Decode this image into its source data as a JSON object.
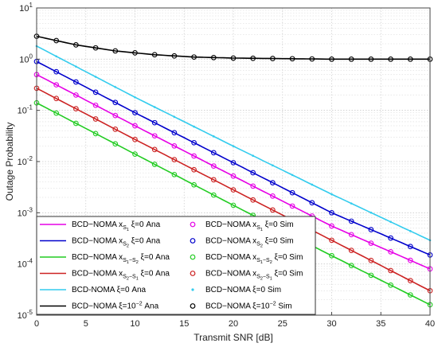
{
  "chart_data": {
    "type": "line",
    "xlabel": "Transmit SNR [dB]",
    "ylabel": "Outage Probability",
    "xlim": [
      0,
      40
    ],
    "ylim": [
      1e-05,
      10
    ],
    "yscale": "log",
    "grid": true,
    "legend_position": "bottom-left",
    "x_ticks": [
      "0",
      "5",
      "10",
      "15",
      "20",
      "25",
      "30",
      "35",
      "40"
    ],
    "y_ticks": [
      {
        "exp": "-5",
        "value": 1e-05
      },
      {
        "exp": "-4",
        "value": 0.0001
      },
      {
        "exp": "-3",
        "value": 0.001
      },
      {
        "exp": "-2",
        "value": 0.01
      },
      {
        "exp": "-1",
        "value": 0.1
      },
      {
        "exp": "0",
        "value": 1
      },
      {
        "exp": "1",
        "value": 10
      }
    ],
    "x": [
      0,
      2,
      4,
      6,
      8,
      10,
      12,
      14,
      16,
      18,
      20,
      22,
      24,
      26,
      28,
      30,
      32,
      34,
      36,
      38,
      40
    ],
    "series": [
      {
        "key": "xs1",
        "color": "#e600e6",
        "points": [
          [
            0,
            0.5
          ],
          [
            10,
            0.05
          ],
          [
            20,
            0.0052
          ],
          [
            30,
            0.00055
          ],
          [
            40,
            8e-05
          ]
        ]
      },
      {
        "key": "xs2",
        "color": "#0000cc",
        "points": [
          [
            0,
            0.9
          ],
          [
            10,
            0.09
          ],
          [
            20,
            0.0095
          ],
          [
            30,
            0.001
          ],
          [
            40,
            0.00015
          ]
        ]
      },
      {
        "key": "xs1s2",
        "color": "#22cc22",
        "points": [
          [
            0,
            0.14
          ],
          [
            10,
            0.014
          ],
          [
            20,
            0.0014
          ],
          [
            30,
            0.000145
          ],
          [
            40,
            1.6e-05
          ]
        ]
      },
      {
        "key": "xs2s1",
        "color": "#cc2222",
        "points": [
          [
            0,
            0.27
          ],
          [
            10,
            0.027
          ],
          [
            20,
            0.0028
          ],
          [
            30,
            0.00029
          ],
          [
            40,
            3e-05
          ]
        ]
      },
      {
        "key": "bcd0",
        "color": "#33ccee",
        "points": [
          [
            0,
            1.8
          ],
          [
            10,
            0.18
          ],
          [
            20,
            0.02
          ],
          [
            30,
            0.0023
          ],
          [
            40,
            0.00029
          ]
        ]
      },
      {
        "key": "bcd1e2",
        "color": "#000000",
        "points": [
          [
            0,
            2.8
          ],
          [
            4,
            1.9
          ],
          [
            8,
            1.45
          ],
          [
            12,
            1.22
          ],
          [
            16,
            1.1
          ],
          [
            20,
            1.05
          ],
          [
            30,
            1.0
          ],
          [
            40,
            1.0
          ]
        ]
      }
    ],
    "legend": {
      "left": [
        {
          "key": "xs1",
          "base": "BCD−NOMA x",
          "sub": "S",
          "subsub": "1",
          "tail": " ξ=0 Ana"
        },
        {
          "key": "xs2",
          "base": "BCD−NOMA x",
          "sub": "S",
          "subsub": "2",
          "tail": " ξ=0 Ana"
        },
        {
          "key": "xs1s2",
          "base": "BCD−NOMA x",
          "sub": "S",
          "subsub": "1",
          "mid": "−S",
          "midsub": "2",
          "tail": " ξ=0 Ana"
        },
        {
          "key": "xs2s1",
          "base": "BCD−NOMA x",
          "sub": "S",
          "subsub": "2",
          "mid": "−S",
          "midsub": "1",
          "tail": " ξ=0 Ana"
        },
        {
          "key": "bcd0",
          "base": "BCD-NOMA ξ=0 Ana"
        },
        {
          "key": "bcd1e2",
          "base": "BCD−NOMA ξ=10",
          "sup": "−2",
          "tail": " Ana"
        }
      ],
      "right": [
        {
          "key": "xs1",
          "base": "BCD−NOMA x",
          "sub": "S",
          "subsub": "1",
          "tail": " ξ=0 Sim"
        },
        {
          "key": "xs2",
          "base": "BCD−NOMA x",
          "sub": "S",
          "subsub": "2",
          "tail": " ξ=0 Sim"
        },
        {
          "key": "xs1s2",
          "base": "BCD−NOMA x",
          "sub": "S",
          "subsub": "1",
          "mid": "−S",
          "midsub": "2",
          "tail": " ξ=0 Sim"
        },
        {
          "key": "xs2s1",
          "base": "BCD−NOMA x",
          "sub": "S",
          "subsub": "2",
          "mid": "−S",
          "midsub": "1",
          "tail": " ξ=0 Sim"
        },
        {
          "key": "bcd0",
          "base": "BCD−NOMA ξ=0 Sim"
        },
        {
          "key": "bcd1e2",
          "base": "BCD−NOMA ξ=10",
          "sup": "−2",
          "tail": " Sim"
        }
      ]
    }
  }
}
